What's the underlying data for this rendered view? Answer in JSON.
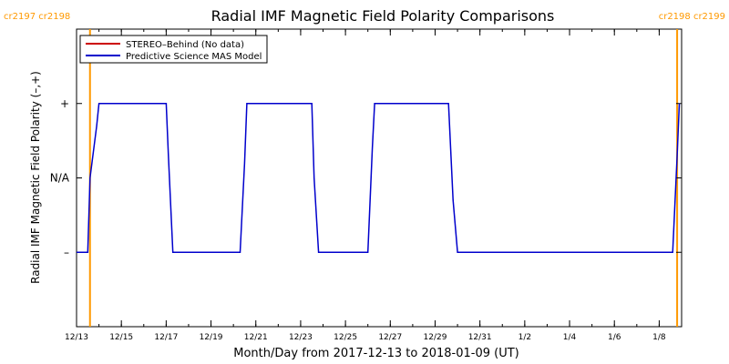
{
  "chart_data": {
    "type": "line",
    "title": "Radial IMF Magnetic Field Polarity Comparisons",
    "xlabel": "Month/Day from 2017-12-13 to 2018-01-09 (UT)",
    "ylabel": "Radial IMF Magnetic Field Polarity (–,+)",
    "x_range": [
      "2017-12-13",
      "2018-01-09"
    ],
    "x_ticks": [
      {
        "date": "2017-12-13",
        "label": "12/13"
      },
      {
        "date": "2017-12-15",
        "label": "12/15"
      },
      {
        "date": "2017-12-17",
        "label": "12/17"
      },
      {
        "date": "2017-12-19",
        "label": "12/19"
      },
      {
        "date": "2017-12-21",
        "label": "12/21"
      },
      {
        "date": "2017-12-23",
        "label": "12/23"
      },
      {
        "date": "2017-12-25",
        "label": "12/25"
      },
      {
        "date": "2017-12-27",
        "label": "12/27"
      },
      {
        "date": "2017-12-29",
        "label": "12/29"
      },
      {
        "date": "2017-12-31",
        "label": "12/31"
      },
      {
        "date": "2018-01-02",
        "label": "1/2"
      },
      {
        "date": "2018-01-04",
        "label": "1/4"
      },
      {
        "date": "2018-01-06",
        "label": "1/6"
      },
      {
        "date": "2018-01-08",
        "label": "1/8"
      }
    ],
    "y_range": [
      -2,
      2
    ],
    "y_ticks": [
      {
        "value": 1,
        "label": "+"
      },
      {
        "value": 0,
        "label": "N/A"
      },
      {
        "value": -1,
        "label": "–"
      }
    ],
    "legend": {
      "placement": "top-left",
      "entries": [
        {
          "label": "STEREO–Behind (No data)",
          "color": "#cc0000"
        },
        {
          "label": "Predictive Science MAS Model",
          "color": "#0000cc"
        }
      ]
    },
    "carrington_markers": [
      {
        "date": "2017-12-13.6",
        "left_label": "cr2197",
        "right_label": "cr2198",
        "position": "left",
        "color": "#ff9900"
      },
      {
        "date": "2018-01-08.8",
        "left_label": "cr2198",
        "right_label": "cr2199",
        "position": "right",
        "color": "#ff9900"
      }
    ],
    "series": [
      {
        "name": "Predictive Science MAS Model",
        "color": "#0000cc",
        "x": [
          "2017-12-13.0",
          "2017-12-13.5",
          "2017-12-13.6",
          "2017-12-13.9",
          "2017-12-14.0",
          "2017-12-17.0",
          "2017-12-17.1",
          "2017-12-17.3",
          "2017-12-20.3",
          "2017-12-20.5",
          "2017-12-20.6",
          "2017-12-23.5",
          "2017-12-23.6",
          "2017-12-23.8",
          "2017-12-26.0",
          "2017-12-26.2",
          "2017-12-26.3",
          "2017-12-29.6",
          "2017-12-29.8",
          "2017-12-30.0",
          "2018-01-08.6",
          "2018-01-08.8",
          "2018-01-08.9"
        ],
        "y": [
          -1,
          -1,
          0,
          0.7,
          1,
          1,
          0.3,
          -1,
          -1,
          0.2,
          1,
          1,
          0,
          -1,
          -1,
          0.4,
          1,
          1,
          -0.3,
          -1,
          -1,
          0.3,
          1
        ]
      }
    ]
  }
}
